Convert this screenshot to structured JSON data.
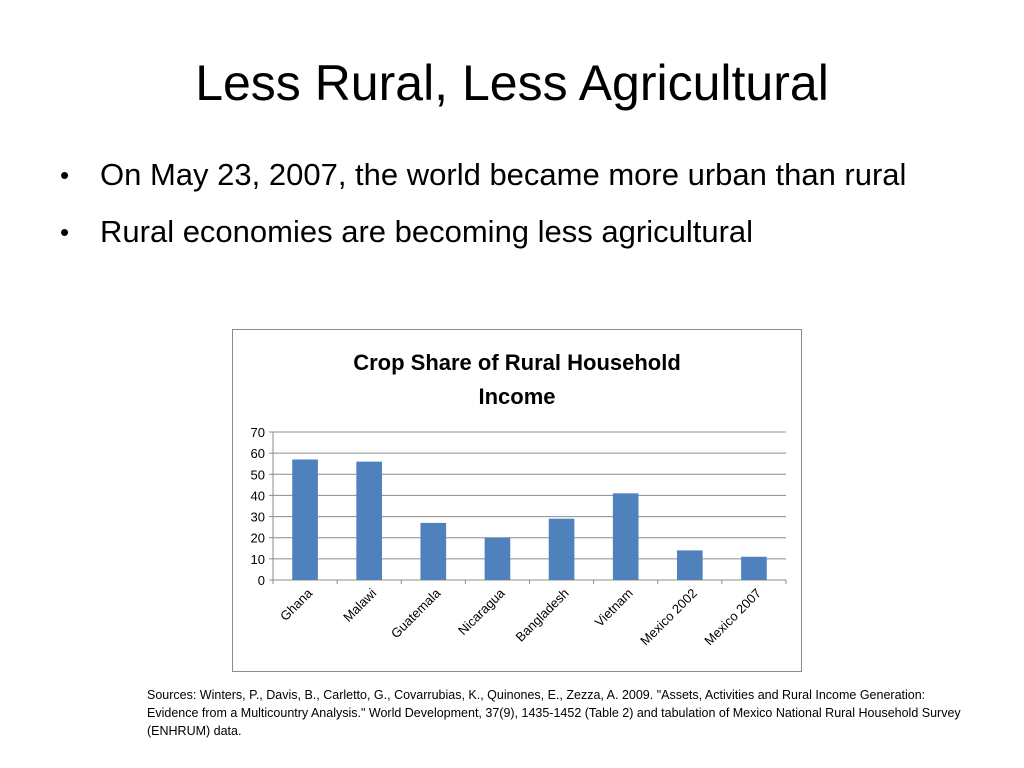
{
  "slide": {
    "title": "Less Rural, Less Agricultural",
    "bullets": [
      "On May 23, 2007, the world became more urban than rural",
      "Rural economies are becoming less agricultural"
    ],
    "sources": "Sources: Winters, P., Davis, B., Carletto, G., Covarrubias, K., Quinones, E., Zezza, A. 2009. \"Assets, Activities and Rural Income Generation: Evidence from a Multicountry Analysis.\" World Development, 37(9), 1435-1452 (Table 2) and tabulation of Mexico National Rural Household Survey (ENHRUM) data."
  },
  "chart_data": {
    "type": "bar",
    "title": "Crop Share of Rural Household Income",
    "title_lines": [
      "Crop Share of Rural Household",
      "Income"
    ],
    "categories": [
      "Ghana",
      "Malawi",
      "Guatemala",
      "Nicaragua",
      "Bangladesh",
      "Vietnam",
      "Mexico 2002",
      "Mexico 2007"
    ],
    "values": [
      57,
      56,
      27,
      20,
      29,
      41,
      14,
      11
    ],
    "ylim": [
      0,
      70
    ],
    "yticks": [
      0,
      10,
      20,
      30,
      40,
      50,
      60,
      70
    ],
    "grid": true,
    "legend": "none",
    "bar_color": "#4f81bd"
  }
}
